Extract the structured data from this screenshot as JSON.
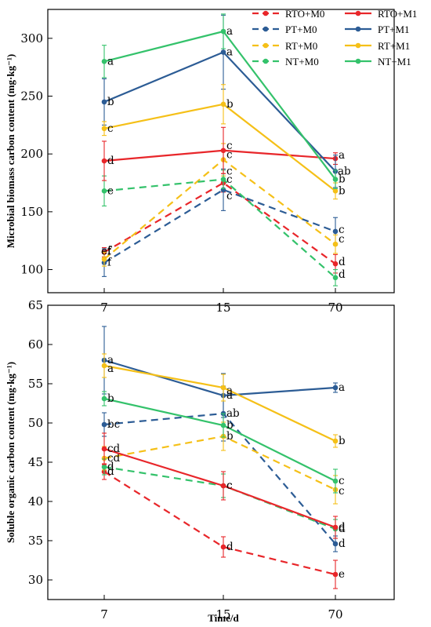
{
  "chart_data": [
    {
      "type": "line",
      "ylabel": "Microbial biomass carbon content (mg·kg⁻¹)",
      "xlabel": "",
      "categories": [
        "7",
        "15",
        "70"
      ],
      "ylim": [
        80,
        325
      ],
      "yticks": [
        100,
        150,
        200,
        250,
        300
      ],
      "legend_position": "top-right",
      "series": [
        {
          "name": "RTO+M0",
          "color": "#e8262a",
          "dashed": true,
          "values": [
            115,
            175,
            105
          ],
          "errors": [
            4,
            8,
            8
          ],
          "labels": [
            "f",
            "c",
            "d"
          ]
        },
        {
          "name": "PT+M0",
          "color": "#2c5c95",
          "dashed": true,
          "values": [
            106,
            169,
            133
          ],
          "errors": [
            12,
            18,
            12
          ],
          "labels": [
            "f",
            "c",
            "c"
          ]
        },
        {
          "name": "RT+M0",
          "color": "#f5c018",
          "dashed": true,
          "values": [
            109,
            195,
            122
          ],
          "errors": [
            6,
            14,
            8
          ],
          "labels": [
            "ef",
            "c",
            "c"
          ]
        },
        {
          "name": "NT+M0",
          "color": "#34c26b",
          "dashed": true,
          "values": [
            168,
            178,
            93
          ],
          "errors": [
            13,
            8,
            7
          ],
          "labels": [
            "e",
            "c",
            "d"
          ]
        },
        {
          "name": "RTO+M1",
          "color": "#e8262a",
          "dashed": false,
          "values": [
            194,
            203,
            196
          ],
          "errors": [
            17,
            20,
            5
          ],
          "labels": [
            "d",
            "c",
            "a"
          ]
        },
        {
          "name": "PT+M1",
          "color": "#2c5c95",
          "dashed": false,
          "values": [
            245,
            288,
            185
          ],
          "errors": [
            20,
            32,
            14
          ],
          "labels": [
            "b",
            "a",
            "ab"
          ]
        },
        {
          "name": "RT+M1",
          "color": "#f5c018",
          "dashed": false,
          "values": [
            222,
            243,
            168
          ],
          "errors": [
            6,
            17,
            7
          ],
          "labels": [
            "c",
            "b",
            "b"
          ]
        },
        {
          "name": "NT+M1",
          "color": "#34c26b",
          "dashed": false,
          "values": [
            280,
            306,
            178
          ],
          "errors": [
            14,
            15,
            8
          ],
          "labels": [
            "a",
            "a",
            "b"
          ]
        }
      ]
    },
    {
      "type": "line",
      "ylabel": "Soluble organic carbon content (mg·kg⁻¹)",
      "xlabel": "Time/d",
      "categories": [
        "7",
        "15",
        "70"
      ],
      "ylim": [
        27.5,
        65
      ],
      "yticks": [
        30,
        35,
        40,
        45,
        50,
        55,
        60,
        65
      ],
      "series": [
        {
          "name": "RTO+M0",
          "color": "#e8262a",
          "dashed": true,
          "values": [
            43.8,
            34.2,
            30.7
          ],
          "errors": [
            1.0,
            1.3,
            1.8
          ],
          "labels": [
            "d",
            "d",
            "e"
          ]
        },
        {
          "name": "PT+M0",
          "color": "#2c5c95",
          "dashed": true,
          "values": [
            49.8,
            51.2,
            34.6
          ],
          "errors": [
            1.5,
            3.5,
            1.0
          ],
          "labels": [
            "bc",
            "ab",
            "d"
          ]
        },
        {
          "name": "RT+M0",
          "color": "#f5c018",
          "dashed": true,
          "values": [
            45.5,
            48.3,
            41.5
          ],
          "errors": [
            1.5,
            1.8,
            1.8
          ],
          "labels": [
            "cd",
            "b",
            "c"
          ]
        },
        {
          "name": "NT+M0",
          "color": "#34c26b",
          "dashed": true,
          "values": [
            44.4,
            42.0,
            36.5
          ],
          "errors": [
            1.0,
            1.5,
            1.2
          ],
          "labels": [
            "d",
            "c",
            "d"
          ]
        },
        {
          "name": "RTO+M1",
          "color": "#e8262a",
          "dashed": false,
          "values": [
            46.7,
            42.0,
            36.7
          ],
          "errors": [
            2.0,
            1.8,
            1.4
          ],
          "labels": [
            "cd",
            "c",
            "d"
          ]
        },
        {
          "name": "PT+M1",
          "color": "#2c5c95",
          "dashed": false,
          "values": [
            58.0,
            53.5,
            54.5
          ],
          "errors": [
            4.3,
            2.8,
            0.6
          ],
          "labels": [
            "a",
            "a",
            "a"
          ]
        },
        {
          "name": "RT+M1",
          "color": "#f5c018",
          "dashed": false,
          "values": [
            57.3,
            54.5,
            47.7
          ],
          "errors": [
            1.5,
            1.7,
            0.8
          ],
          "labels": [
            "a",
            "a",
            "b"
          ]
        },
        {
          "name": "NT+M1",
          "color": "#34c26b",
          "dashed": false,
          "values": [
            53.1,
            49.7,
            42.6
          ],
          "errors": [
            0.9,
            1.5,
            1.5
          ],
          "labels": [
            "b",
            "b",
            "c"
          ]
        }
      ]
    }
  ]
}
